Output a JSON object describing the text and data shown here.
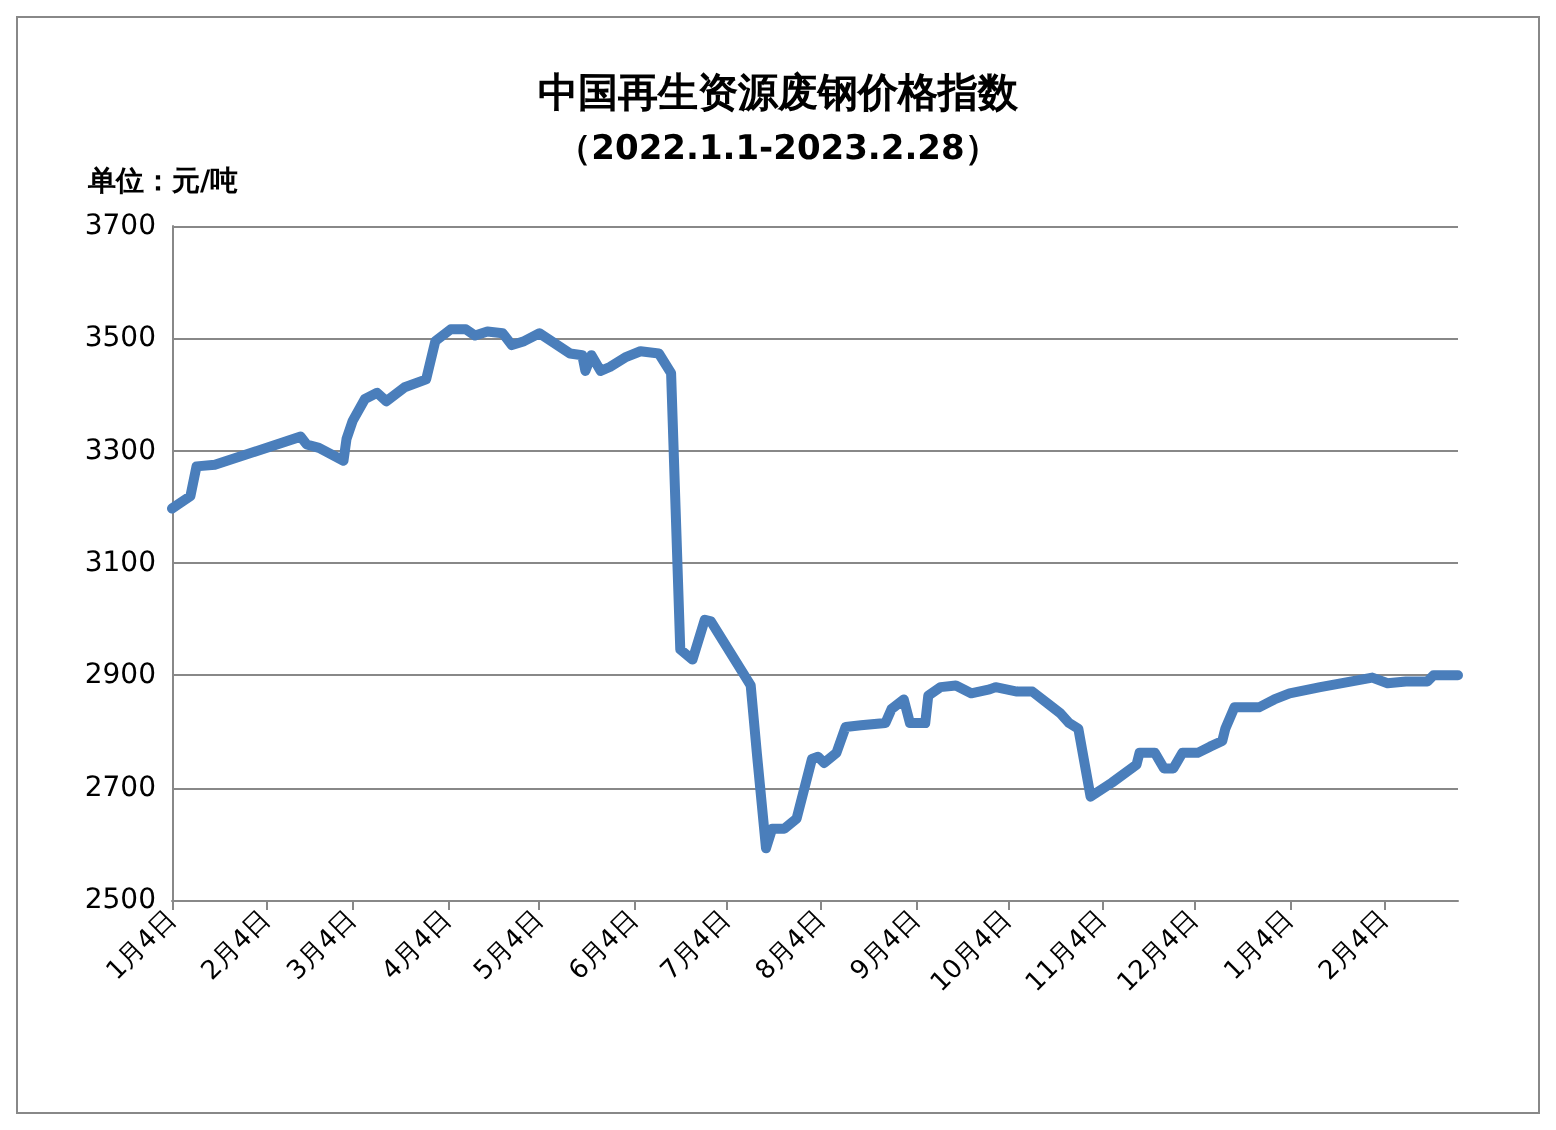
{
  "chart_data": {
    "type": "line",
    "title": "中国再生资源废钢价格指数",
    "subtitle": "（2022.1.1-2023.2.28）",
    "ylabel": "单位：元/吨",
    "x": [
      "2022-01-04",
      "2022-01-10",
      "2022-01-12",
      "2022-01-18",
      "2022-02-15",
      "2022-02-17",
      "2022-02-21",
      "2022-03-01",
      "2022-03-02",
      "2022-03-04",
      "2022-03-08",
      "2022-03-12",
      "2022-03-15",
      "2022-03-21",
      "2022-03-28",
      "2022-03-31",
      "2022-04-05",
      "2022-04-10",
      "2022-04-13",
      "2022-04-17",
      "2022-04-22",
      "2022-04-25",
      "2022-04-29",
      "2022-05-04",
      "2022-05-14",
      "2022-05-18",
      "2022-05-19",
      "2022-05-21",
      "2022-05-24",
      "2022-05-27",
      "2022-06-01",
      "2022-06-06",
      "2022-06-12",
      "2022-06-16",
      "2022-06-19",
      "2022-06-23",
      "2022-06-27",
      "2022-06-29",
      "2022-07-12",
      "2022-07-14",
      "2022-07-17",
      "2022-07-19",
      "2022-07-23",
      "2022-07-27",
      "2022-08-01",
      "2022-08-03",
      "2022-08-05",
      "2022-08-09",
      "2022-08-12",
      "2022-08-17",
      "2022-08-25",
      "2022-08-27",
      "2022-08-31",
      "2022-09-02",
      "2022-09-07",
      "2022-09-08",
      "2022-09-12",
      "2022-09-17",
      "2022-09-22",
      "2022-09-28",
      "2022-09-30",
      "2022-10-07",
      "2022-10-12",
      "2022-10-17",
      "2022-10-21",
      "2022-10-24",
      "2022-10-27",
      "2022-10-31",
      "2022-11-07",
      "2022-11-15",
      "2022-11-16",
      "2022-11-21",
      "2022-11-24",
      "2022-11-27",
      "2022-11-30",
      "2022-12-05",
      "2022-12-09",
      "2022-12-13",
      "2022-12-14",
      "2022-12-17",
      "2022-12-21",
      "2022-12-25",
      "2022-12-30",
      "2023-01-04",
      "2023-01-14",
      "2023-01-31",
      "2023-02-05",
      "2023-02-11",
      "2023-02-18",
      "2023-02-20",
      "2023-02-28"
    ],
    "series": [
      {
        "color": "#4a7ebb",
        "values": [
          3197,
          3219,
          3272,
          3275,
          3325,
          3311,
          3305,
          3282,
          3321,
          3353,
          3392,
          3403,
          3388,
          3413,
          3427,
          3495,
          3516,
          3516,
          3505,
          3512,
          3509,
          3488,
          3495,
          3509,
          3473,
          3470,
          3442,
          3470,
          3442,
          3449,
          3466,
          3477,
          3473,
          3438,
          2946,
          2928,
          2999,
          2996,
          2882,
          2762,
          2592,
          2627,
          2627,
          2645,
          2751,
          2755,
          2744,
          2762,
          2808,
          2811,
          2815,
          2840,
          2857,
          2815,
          2815,
          2864,
          2879,
          2882,
          2868,
          2875,
          2879,
          2871,
          2871,
          2850,
          2833,
          2815,
          2805,
          2684,
          2709,
          2741,
          2762,
          2762,
          2734,
          2734,
          2762,
          2762,
          2773,
          2783,
          2805,
          2843,
          2843,
          2843,
          2857,
          2868,
          2879,
          2896,
          2886,
          2889,
          2889,
          2900,
          2900
        ]
      }
    ],
    "xlim": [
      "2022-01-04",
      "2023-02-28"
    ],
    "xticks": [
      {
        "value": "2022-01-04",
        "label": "1月4日"
      },
      {
        "value": "2022-02-04",
        "label": "2月4日"
      },
      {
        "value": "2022-03-04",
        "label": "3月4日"
      },
      {
        "value": "2022-04-04",
        "label": "4月4日"
      },
      {
        "value": "2022-05-04",
        "label": "5月4日"
      },
      {
        "value": "2022-06-04",
        "label": "6月4日"
      },
      {
        "value": "2022-07-04",
        "label": "7月4日"
      },
      {
        "value": "2022-08-04",
        "label": "8月4日"
      },
      {
        "value": "2022-09-04",
        "label": "9月4日"
      },
      {
        "value": "2022-10-04",
        "label": "10月4日"
      },
      {
        "value": "2022-11-04",
        "label": "11月4日"
      },
      {
        "value": "2022-12-04",
        "label": "12月4日"
      },
      {
        "value": "2023-01-04",
        "label": "1月4日"
      },
      {
        "value": "2023-02-04",
        "label": "2月4日"
      }
    ],
    "ylim": [
      2500,
      3700
    ],
    "yticks": [
      2500,
      2700,
      2900,
      3100,
      3300,
      3500,
      3700
    ],
    "grid": "y",
    "marker": "none",
    "line_style": "solid"
  }
}
